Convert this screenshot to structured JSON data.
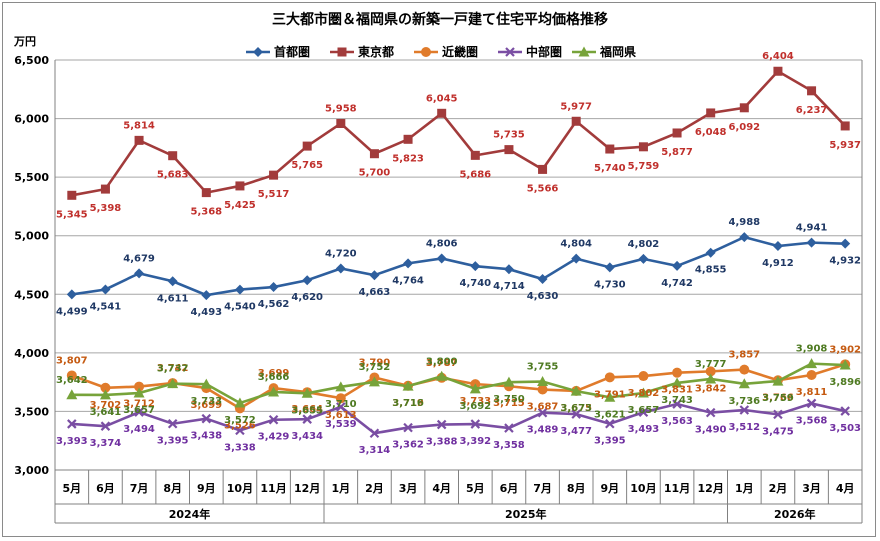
{
  "chart_data": {
    "type": "line",
    "title": "三大都市圏＆福岡県の新築一戸建て住宅平均価格推移",
    "ylabel": "万円",
    "ylim": [
      3000,
      6500
    ],
    "yticks": [
      "3,000",
      "3,500",
      "4,000",
      "4,500",
      "5,000",
      "5,500",
      "6,000",
      "6,500"
    ],
    "ytick_values": [
      3000,
      3500,
      4000,
      4500,
      5000,
      5500,
      6000,
      6500
    ],
    "categories": [
      "5月",
      "6月",
      "7月",
      "8月",
      "9月",
      "10月",
      "11月",
      "12月",
      "1月",
      "2月",
      "3月",
      "4月",
      "5月",
      "6月",
      "7月",
      "8月",
      "9月",
      "10月",
      "11月",
      "12月",
      "1月",
      "2月",
      "3月",
      "4月"
    ],
    "years": [
      {
        "label": "2024年",
        "start": 0,
        "end": 7
      },
      {
        "label": "2025年",
        "start": 8,
        "end": 19
      },
      {
        "label": "2026年",
        "start": 20,
        "end": 23
      }
    ],
    "grid": "horizontal",
    "legend": "top",
    "series": [
      {
        "name": "首都圏",
        "color": "#2e5f9e",
        "label_color": "#1f3864",
        "marker": "diamond",
        "values": [
          4499,
          4541,
          4679,
          4611,
          4493,
          4540,
          4562,
          4620,
          4720,
          4663,
          4764,
          4806,
          4740,
          4714,
          4630,
          4804,
          4730,
          4802,
          4742,
          4855,
          4988,
          4912,
          4941,
          4932
        ],
        "labels": [
          "4,499",
          "4,541",
          "4,679",
          "4,611",
          "4,493",
          "4,540",
          "4,562",
          "4,620",
          "4,720",
          "4,663",
          "4,764",
          "4,806",
          "4,740",
          "4,714",
          "4,630",
          "4,804",
          "4,730",
          "4,802",
          "4,742",
          "4,855",
          "4,988",
          "4,912",
          "4,941",
          "4,932"
        ]
      },
      {
        "name": "東京都",
        "color": "#a23b3b",
        "label_color": "#c0302c",
        "marker": "square",
        "values": [
          5345,
          5398,
          5814,
          5683,
          5368,
          5425,
          5517,
          5765,
          5958,
          5700,
          5823,
          6045,
          5686,
          5735,
          5566,
          5977,
          5740,
          5759,
          5877,
          6048,
          6092,
          6404,
          6237,
          5937
        ],
        "labels": [
          "5,345",
          "5,398",
          "5,814",
          "5,683",
          "5,368",
          "5,425",
          "5,517",
          "5,765",
          "5,958",
          "5,700",
          "5,823",
          "6,045",
          "5,686",
          "5,735",
          "5,566",
          "5,977",
          "5,740",
          "5,759",
          "5,877",
          "6,048",
          "6,092",
          "6,404",
          "6,237",
          "5,937"
        ]
      },
      {
        "name": "近畿圏",
        "color": "#e07b2b",
        "label_color": "#c55a11",
        "marker": "circle",
        "values": [
          3807,
          3702,
          3712,
          3742,
          3699,
          3526,
          3699,
          3664,
          3613,
          3790,
          3719,
          3787,
          3733,
          3715,
          3687,
          3675,
          3791,
          3802,
          3831,
          3842,
          3857,
          3766,
          3811,
          3902
        ],
        "labels": [
          "3,807",
          "3,702",
          "3,712",
          "3,742",
          "3,699",
          "3,526",
          "3,699",
          "3,664",
          "3,613",
          "3,790",
          "3,719",
          "3,787",
          "3,733",
          "3,715",
          "3,687",
          "3,675",
          "3,791",
          "3,802",
          "3,831",
          "3,842",
          "3,857",
          "3,766",
          "3,811",
          "3,902"
        ]
      },
      {
        "name": "中部圏",
        "color": "#7a4ea3",
        "label_color": "#7030a0",
        "marker": "x",
        "values": [
          3393,
          3374,
          3494,
          3395,
          3438,
          3338,
          3429,
          3434,
          3539,
          3314,
          3362,
          3388,
          3392,
          3358,
          3489,
          3477,
          3395,
          3493,
          3563,
          3490,
          3512,
          3475,
          3568,
          3503
        ],
        "labels": [
          "3,393",
          "3,374",
          "3,494",
          "3,395",
          "3,438",
          "3,338",
          "3,429",
          "3,434",
          "3,539",
          "3,314",
          "3,362",
          "3,388",
          "3,392",
          "3,358",
          "3,489",
          "3,477",
          "3,395",
          "3,493",
          "3,563",
          "3,490",
          "3,512",
          "3,475",
          "3,568",
          "3,503"
        ]
      },
      {
        "name": "福岡県",
        "color": "#77a33a",
        "label_color": "#4e7a21",
        "marker": "triangle",
        "values": [
          3642,
          3641,
          3657,
          3737,
          3733,
          3572,
          3666,
          3655,
          3710,
          3752,
          3716,
          3800,
          3692,
          3750,
          3755,
          3673,
          3621,
          3657,
          3743,
          3777,
          3736,
          3759,
          3908,
          3896
        ],
        "labels": [
          "3,642",
          "3,641",
          "3,657",
          "3,737",
          "3,733",
          "3,572",
          "3,666",
          "3,655",
          "3,710",
          "3,752",
          "3,716",
          "3,800",
          "3,692",
          "3,750",
          "3,755",
          "3,673",
          "3,621",
          "3,657",
          "3,743",
          "3,777",
          "3,736",
          "3,759",
          "3,908",
          "3,896"
        ]
      }
    ]
  }
}
